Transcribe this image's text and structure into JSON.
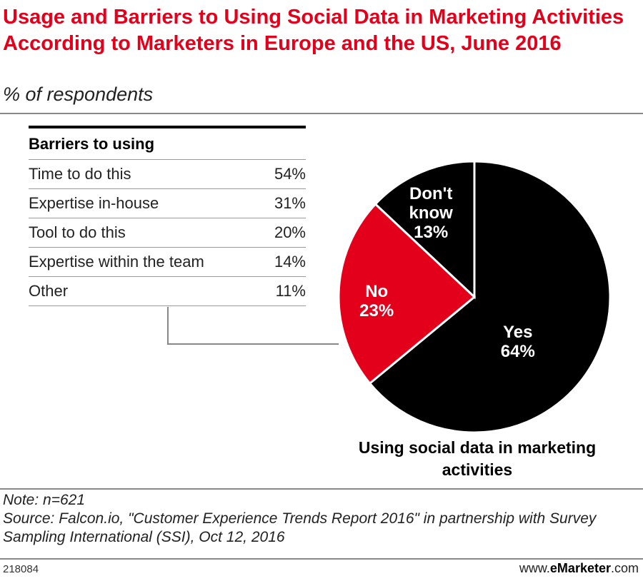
{
  "chart_data": {
    "type": "pie",
    "title": "Usage and Barriers to Using Social Data in Marketing Activities According to Marketers in Europe and the US, June 2016",
    "subtitle": "% of respondents",
    "caption": "Using social data in marketing activities",
    "slices": [
      {
        "name_lines": [
          "Yes"
        ],
        "label": "64%",
        "value": 64,
        "color": "#000000"
      },
      {
        "name_lines": [
          "No"
        ],
        "label": "23%",
        "value": 23,
        "color": "#e3001b"
      },
      {
        "name_lines": [
          "Don't",
          "know"
        ],
        "label": "13%",
        "value": 13,
        "color": "#000000"
      }
    ],
    "table": {
      "title": "Barriers to using",
      "rows": [
        {
          "label": "Time to do this",
          "value_label": "54%",
          "value": 54
        },
        {
          "label": "Expertise in-house",
          "value_label": "31%",
          "value": 31
        },
        {
          "label": "Tool to do this",
          "value_label": "20%",
          "value": 20
        },
        {
          "label": "Expertise within the team",
          "value_label": "14%",
          "value": 14
        },
        {
          "label": "Other",
          "value_label": "11%",
          "value": 11
        }
      ]
    }
  },
  "footer": {
    "note": "Note: n=621",
    "source": "Source: Falcon.io, \"Customer Experience Trends Report 2016\" in partnership with Survey Sampling International (SSI), Oct 12, 2016",
    "chart_id": "218084",
    "brand_prefix": "www.",
    "brand_name": "eMarketer",
    "brand_suffix": ".com"
  }
}
